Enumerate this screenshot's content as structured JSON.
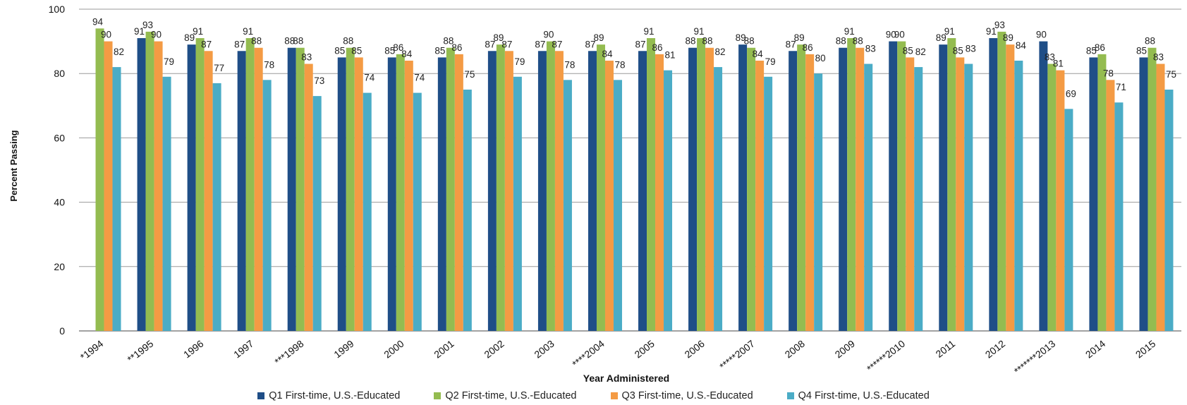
{
  "chart_data": {
    "type": "bar",
    "title": "",
    "xlabel": "Year Administered",
    "ylabel": "Percent Passing",
    "ylim": [
      0,
      100
    ],
    "yticks": [
      0,
      20,
      40,
      60,
      80,
      100
    ],
    "grid": true,
    "legend_position": "bottom",
    "categories": [
      "*1994",
      "**1995",
      "1996",
      "1997",
      "***1998",
      "1999",
      "2000",
      "2001",
      "2002",
      "2003",
      "****2004",
      "2005",
      "2006",
      "*****2007",
      "2008",
      "2009",
      "******2010",
      "2011",
      "2012",
      "*******2013",
      "2014",
      "2015"
    ],
    "series": [
      {
        "name": "Q1 First-time, U.S.-Educated",
        "color": "#1f4e87",
        "values": [
          null,
          91,
          89,
          87,
          88,
          85,
          85,
          85,
          87,
          87,
          87,
          87,
          88,
          89,
          87,
          88,
          90,
          89,
          91,
          90,
          85,
          85
        ]
      },
      {
        "name": "Q2 First-time, U.S.-Educated",
        "color": "#94bc50",
        "values": [
          94,
          93,
          91,
          91,
          88,
          88,
          86,
          88,
          89,
          90,
          89,
          91,
          91,
          88,
          89,
          91,
          90,
          91,
          93,
          83,
          86,
          88
        ]
      },
      {
        "name": "Q3 First-time, U.S.-Educated",
        "color": "#f49b44",
        "values": [
          90,
          90,
          87,
          88,
          83,
          85,
          84,
          86,
          87,
          87,
          84,
          86,
          88,
          84,
          86,
          88,
          85,
          85,
          89,
          81,
          78,
          83
        ]
      },
      {
        "name": "Q4 First-time, U.S.-Educated",
        "color": "#4bacc6",
        "values": [
          82,
          79,
          77,
          78,
          73,
          74,
          74,
          75,
          79,
          78,
          78,
          81,
          82,
          79,
          80,
          83,
          82,
          83,
          84,
          69,
          71,
          75
        ]
      }
    ]
  }
}
